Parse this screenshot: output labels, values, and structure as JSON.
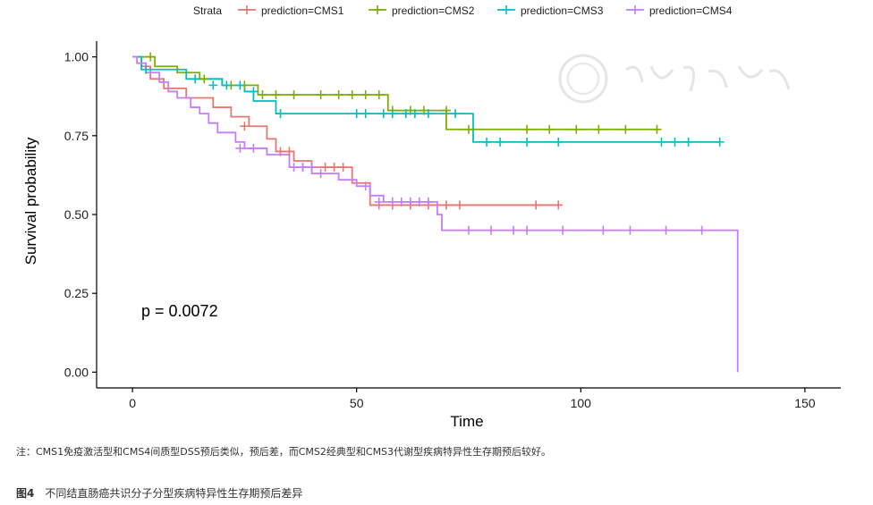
{
  "chart_data": {
    "type": "line",
    "subtype": "kaplan-meier",
    "xlabel": "Time",
    "ylabel": "Survival probability",
    "xlim": [
      -8,
      158
    ],
    "ylim": [
      -0.05,
      1.05
    ],
    "xticks": [
      0,
      50,
      100,
      150
    ],
    "yticks": [
      0.0,
      0.25,
      0.5,
      0.75,
      1.0
    ],
    "ytick_labels": [
      "0.00",
      "0.25",
      "0.50",
      "0.75",
      "1.00"
    ],
    "annotation": "p = 0.0072",
    "legend": {
      "title": "Strata",
      "position": "top"
    },
    "grid": false,
    "series": [
      {
        "name": "prediction=CMS1",
        "color": "#E7776F",
        "steps": [
          [
            0,
            1.0
          ],
          [
            2,
            0.97
          ],
          [
            4,
            0.93
          ],
          [
            7,
            0.9
          ],
          [
            12,
            0.87
          ],
          [
            18,
            0.84
          ],
          [
            22,
            0.81
          ],
          [
            26,
            0.78
          ],
          [
            30,
            0.74
          ],
          [
            32,
            0.7
          ],
          [
            36,
            0.67
          ],
          [
            40,
            0.65
          ],
          [
            49,
            0.6
          ],
          [
            53,
            0.57
          ],
          [
            53,
            0.53
          ],
          [
            95,
            0.53
          ]
        ],
        "censor": [
          [
            25,
            0.78
          ],
          [
            33,
            0.7
          ],
          [
            35,
            0.7
          ],
          [
            38,
            0.65
          ],
          [
            43,
            0.65
          ],
          [
            45,
            0.65
          ],
          [
            47,
            0.65
          ],
          [
            55,
            0.53
          ],
          [
            58,
            0.53
          ],
          [
            62,
            0.53
          ],
          [
            66,
            0.53
          ],
          [
            70,
            0.53
          ],
          [
            73,
            0.53
          ],
          [
            90,
            0.53
          ],
          [
            95,
            0.53
          ]
        ]
      },
      {
        "name": "prediction=CMS2",
        "color": "#7CAE00",
        "steps": [
          [
            0,
            1.0
          ],
          [
            5,
            0.97
          ],
          [
            10,
            0.95
          ],
          [
            15,
            0.93
          ],
          [
            20,
            0.91
          ],
          [
            28,
            0.88
          ],
          [
            57,
            0.83
          ],
          [
            70,
            0.83
          ],
          [
            70,
            0.77
          ],
          [
            117,
            0.77
          ]
        ],
        "censor": [
          [
            4,
            1.0
          ],
          [
            14,
            0.93
          ],
          [
            16,
            0.93
          ],
          [
            22,
            0.91
          ],
          [
            25,
            0.91
          ],
          [
            29,
            0.88
          ],
          [
            32,
            0.88
          ],
          [
            36,
            0.88
          ],
          [
            42,
            0.88
          ],
          [
            46,
            0.88
          ],
          [
            49,
            0.88
          ],
          [
            52,
            0.88
          ],
          [
            55,
            0.88
          ],
          [
            58,
            0.83
          ],
          [
            62,
            0.83
          ],
          [
            65,
            0.83
          ],
          [
            70,
            0.83
          ],
          [
            75,
            0.77
          ],
          [
            88,
            0.77
          ],
          [
            93,
            0.77
          ],
          [
            99,
            0.77
          ],
          [
            104,
            0.77
          ],
          [
            110,
            0.77
          ],
          [
            117,
            0.77
          ]
        ]
      },
      {
        "name": "prediction=CMS3",
        "color": "#00BFC4",
        "steps": [
          [
            0,
            1.0
          ],
          [
            2,
            0.96
          ],
          [
            12,
            0.93
          ],
          [
            20,
            0.91
          ],
          [
            25,
            0.89
          ],
          [
            27,
            0.86
          ],
          [
            32,
            0.82
          ],
          [
            76,
            0.82
          ],
          [
            76,
            0.73
          ],
          [
            131,
            0.73
          ]
        ],
        "censor": [
          [
            3,
            0.96
          ],
          [
            14,
            0.93
          ],
          [
            18,
            0.91
          ],
          [
            21,
            0.91
          ],
          [
            24,
            0.91
          ],
          [
            27,
            0.89
          ],
          [
            33,
            0.82
          ],
          [
            50,
            0.82
          ],
          [
            52,
            0.82
          ],
          [
            56,
            0.82
          ],
          [
            58,
            0.82
          ],
          [
            61,
            0.82
          ],
          [
            63,
            0.82
          ],
          [
            66,
            0.82
          ],
          [
            72,
            0.82
          ],
          [
            79,
            0.73
          ],
          [
            82,
            0.73
          ],
          [
            88,
            0.73
          ],
          [
            95,
            0.73
          ],
          [
            118,
            0.73
          ],
          [
            121,
            0.73
          ],
          [
            124,
            0.73
          ],
          [
            131,
            0.73
          ]
        ]
      },
      {
        "name": "prediction=CMS4",
        "color": "#C77CFF",
        "steps": [
          [
            0,
            1.0
          ],
          [
            1,
            0.98
          ],
          [
            3,
            0.95
          ],
          [
            6,
            0.92
          ],
          [
            8,
            0.89
          ],
          [
            10,
            0.87
          ],
          [
            13,
            0.84
          ],
          [
            15,
            0.82
          ],
          [
            17,
            0.79
          ],
          [
            19,
            0.76
          ],
          [
            23,
            0.73
          ],
          [
            25,
            0.71
          ],
          [
            30,
            0.69
          ],
          [
            35,
            0.65
          ],
          [
            40,
            0.63
          ],
          [
            46,
            0.61
          ],
          [
            50,
            0.59
          ],
          [
            53,
            0.56
          ],
          [
            56,
            0.54
          ],
          [
            68,
            0.5
          ],
          [
            69,
            0.45
          ],
          [
            135,
            0.45
          ],
          [
            135,
            0.0
          ]
        ],
        "censor": [
          [
            24,
            0.71
          ],
          [
            27,
            0.71
          ],
          [
            36,
            0.65
          ],
          [
            38,
            0.65
          ],
          [
            40,
            0.65
          ],
          [
            42,
            0.63
          ],
          [
            52,
            0.59
          ],
          [
            55,
            0.54
          ],
          [
            58,
            0.54
          ],
          [
            60,
            0.54
          ],
          [
            62,
            0.54
          ],
          [
            64,
            0.54
          ],
          [
            66,
            0.54
          ],
          [
            75,
            0.45
          ],
          [
            80,
            0.45
          ],
          [
            85,
            0.45
          ],
          [
            88,
            0.45
          ],
          [
            96,
            0.45
          ],
          [
            105,
            0.45
          ],
          [
            111,
            0.45
          ],
          [
            119,
            0.45
          ],
          [
            127,
            0.45
          ]
        ]
      }
    ]
  },
  "note": "注：CMS1免疫激活型和CMS4间质型DSS预后类似，预后差，而CMS2经典型和CMS3代谢型疾病特异性生存期预后较好。",
  "caption": {
    "label": "图4",
    "text": "不同结直肠癌共识分子分型疾病特异性生存期预后差异"
  }
}
